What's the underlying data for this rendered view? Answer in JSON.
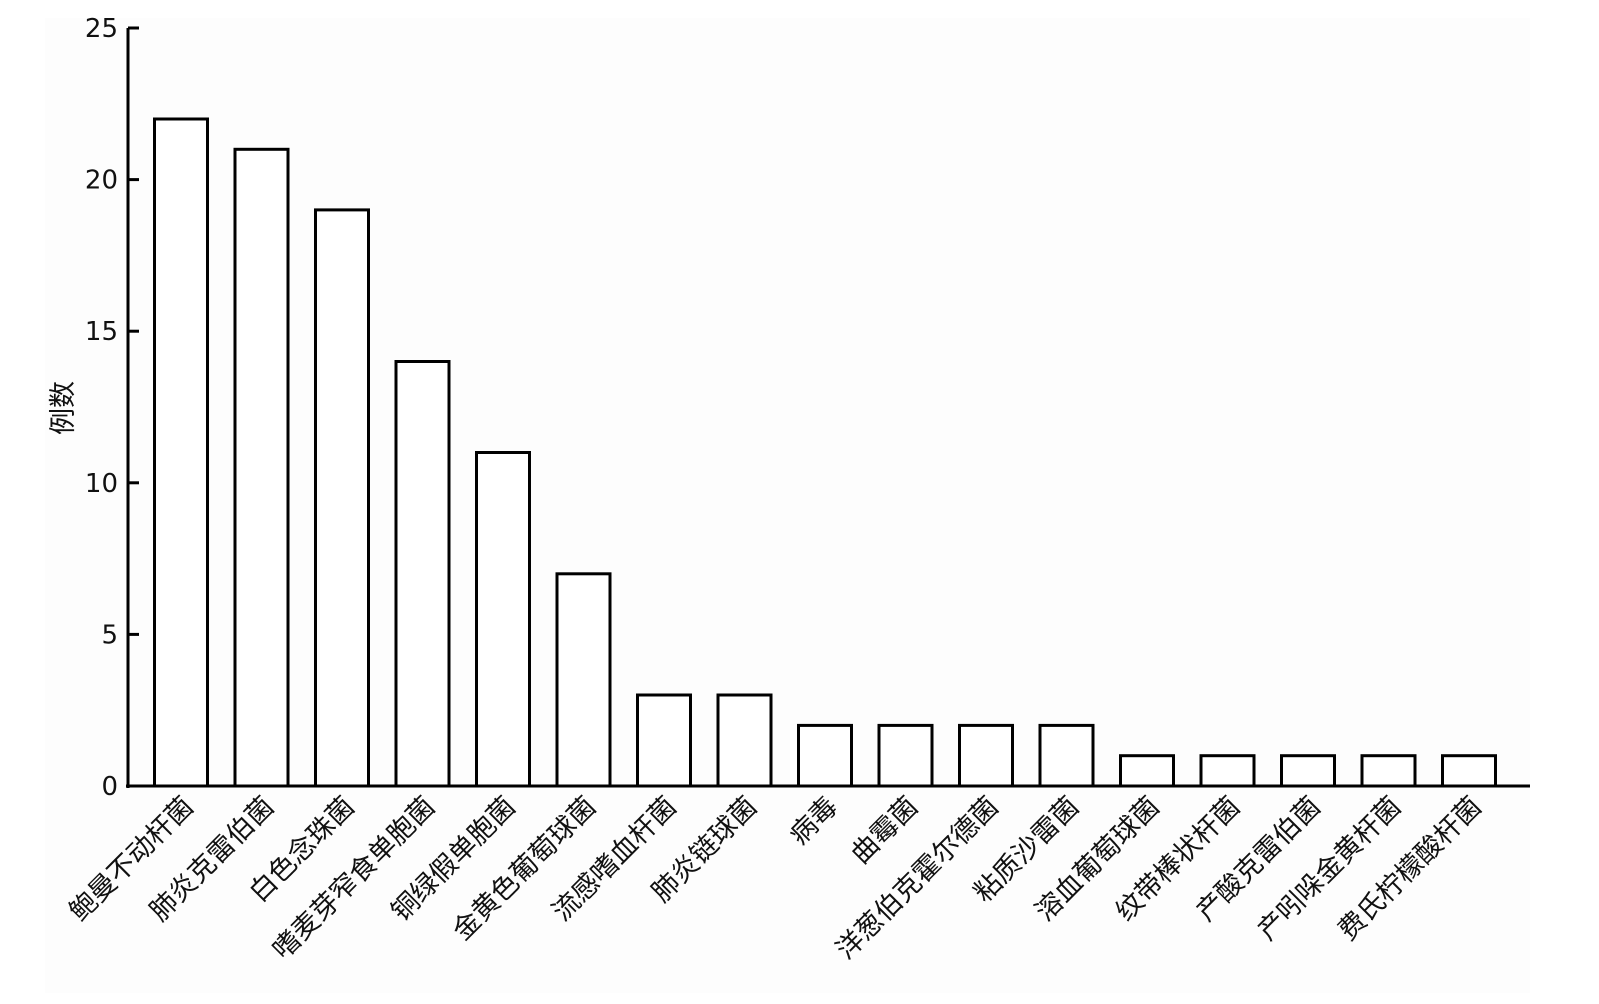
{
  "chart_data": {
    "type": "bar",
    "title": "",
    "xlabel": "",
    "ylabel": "例数",
    "ylim": [
      0,
      25
    ],
    "yticks": [
      0,
      5,
      10,
      15,
      20,
      25
    ],
    "grid": false,
    "categories": [
      "鲍曼不动杆菌",
      "肺炎克雷伯菌",
      "白色念珠菌",
      "嗜麦芽窄食单胞菌",
      "铜绿假单胞菌",
      "金黄色葡萄球菌",
      "流感嗜血杆菌",
      "肺炎链球菌",
      "病毒",
      "曲霉菌",
      "洋葱伯克霍尔德菌",
      "粘质沙雷菌",
      "溶血葡萄球菌",
      "纹带棒状杆菌",
      "产酸克雷伯菌",
      "产吲哚金黄杆菌",
      "费氏柠檬酸杆菌"
    ],
    "values": [
      22,
      21,
      19,
      14,
      11,
      7,
      3,
      3,
      2,
      2,
      2,
      2,
      1,
      1,
      1,
      1,
      1
    ],
    "colors": {
      "bar_fill": "#ffffff",
      "bar_stroke": "#000000",
      "axis": "#000000",
      "background": "#fdfdfd"
    }
  }
}
